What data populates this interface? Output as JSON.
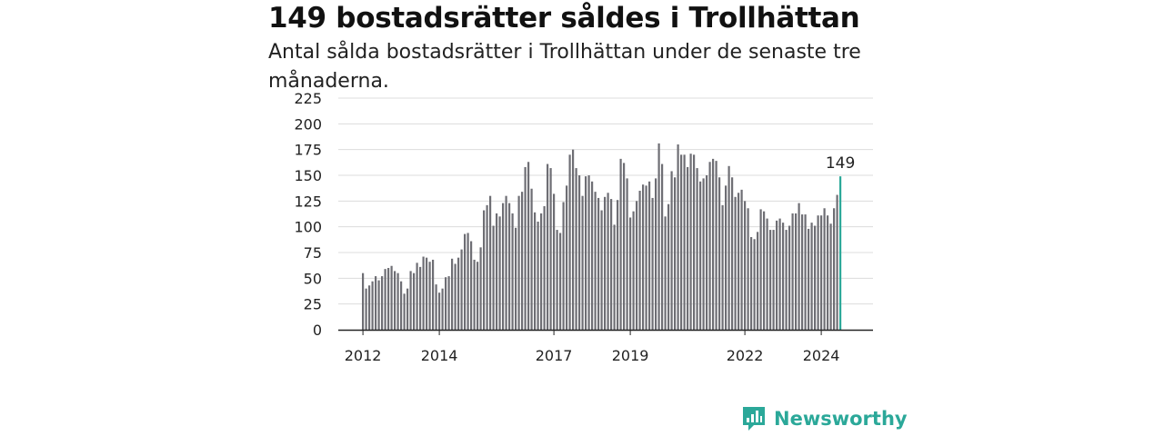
{
  "title": "149 bostadsrätter såldes i Trollhättan",
  "subtitle": "Antal sålda bostadsrätter i Trollhättan under de senaste tre månaderna.",
  "brand": {
    "name": "Newsworthy",
    "icon": "newsworthy-logo-icon",
    "color": "#2ba899"
  },
  "chart_data": {
    "type": "bar",
    "title": "149 bostadsrätter såldes i Trollhättan",
    "xlabel": "",
    "ylabel": "",
    "ylim": [
      0,
      225
    ],
    "yticks": [
      0,
      25,
      50,
      75,
      100,
      125,
      150,
      175,
      200,
      225
    ],
    "xticks": [
      "2012",
      "2014",
      "2017",
      "2019",
      "2022",
      "2024"
    ],
    "grid": true,
    "bar_color": "#6e6e74",
    "highlight_color": "#2ba899",
    "annotation": {
      "label": "149",
      "target": "last bar"
    },
    "start": "2012-01",
    "values": [
      55,
      40,
      43,
      47,
      52,
      48,
      52,
      59,
      60,
      62,
      57,
      55,
      47,
      35,
      40,
      57,
      55,
      65,
      61,
      71,
      70,
      66,
      68,
      44,
      36,
      40,
      51,
      52,
      69,
      64,
      70,
      78,
      93,
      94,
      86,
      68,
      66,
      80,
      116,
      121,
      130,
      101,
      113,
      110,
      123,
      130,
      123,
      113,
      99,
      130,
      134,
      158,
      163,
      137,
      114,
      105,
      113,
      120,
      161,
      157,
      132,
      97,
      94,
      124,
      140,
      170,
      175,
      157,
      150,
      130,
      149,
      150,
      144,
      134,
      128,
      116,
      129,
      133,
      127,
      102,
      126,
      166,
      162,
      147,
      109,
      115,
      125,
      135,
      141,
      140,
      144,
      128,
      147,
      181,
      161,
      110,
      122,
      154,
      148,
      180,
      170,
      170,
      158,
      171,
      170,
      157,
      144,
      147,
      150,
      163,
      166,
      164,
      148,
      121,
      140,
      159,
      148,
      129,
      133,
      136,
      125,
      118,
      90,
      88,
      95,
      117,
      115,
      108,
      97,
      97,
      106,
      108,
      104,
      97,
      101,
      113,
      113,
      123,
      112,
      112,
      98,
      104,
      101,
      111,
      111,
      118,
      111,
      103,
      118,
      131,
      149
    ]
  }
}
